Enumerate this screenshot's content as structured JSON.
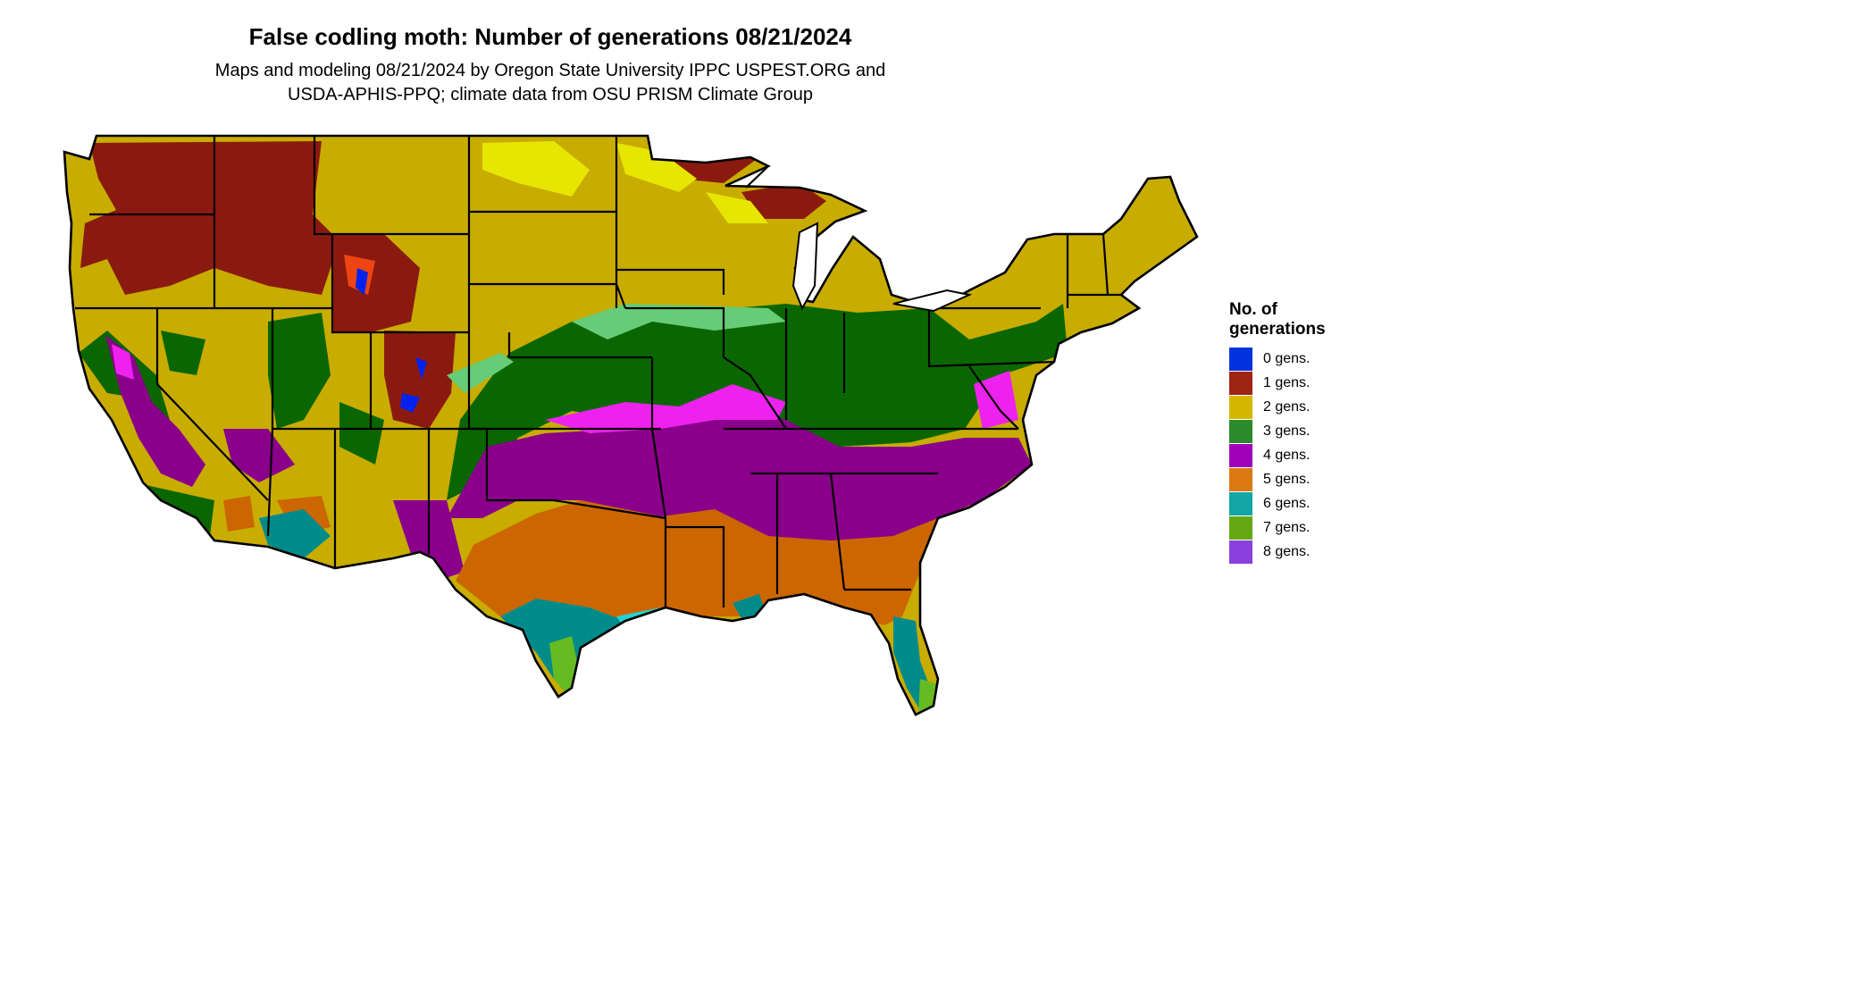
{
  "title": "False codling moth: Number of generations 08/21/2024",
  "subtitle": {
    "line1": "Maps and modeling 08/21/2024 by Oregon State University IPPC USPEST.ORG and",
    "line2": "USDA-APHIS-PPQ; climate data from OSU PRISM Climate Group"
  },
  "legend": {
    "title_line1": "No. of",
    "title_line2": "generations",
    "items": [
      {
        "label": "0 gens.",
        "color": "#0033dd"
      },
      {
        "label": "1 gens.",
        "color": "#9e2414"
      },
      {
        "label": "2 gens.",
        "color": "#d4b800"
      },
      {
        "label": "3 gens.",
        "color": "#2b8a2b"
      },
      {
        "label": "4 gens.",
        "color": "#a000b8"
      },
      {
        "label": "5 gens.",
        "color": "#db7a12"
      },
      {
        "label": "6 gens.",
        "color": "#12a6a6"
      },
      {
        "label": "7 gens.",
        "color": "#66a814"
      },
      {
        "label": "8 gens.",
        "color": "#8a3fdc"
      }
    ]
  },
  "map_colors": {
    "dark_red": "#8a1a10",
    "olive_yellow": "#c8ac00",
    "bright_yellow": "#e6e600",
    "dark_green": "#0a6600",
    "light_green": "#66cc77",
    "purple": "#8a008a",
    "magenta": "#ee22ee",
    "orange": "#cc6600",
    "teal": "#008b8b",
    "cyan": "#22d4d4",
    "lime": "#66bb22",
    "blue": "#0022ee",
    "orange_red": "#ee4411",
    "borders": "#000000"
  }
}
